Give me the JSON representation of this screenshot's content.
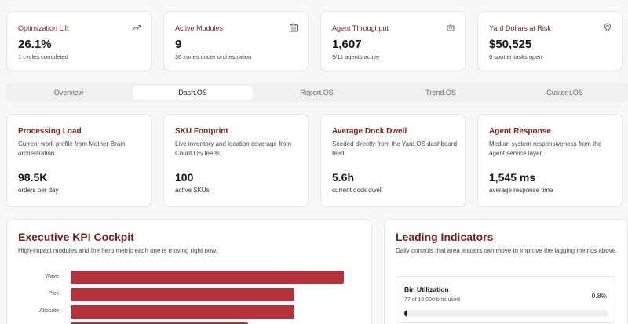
{
  "stats": [
    {
      "label": "Optimization Lift",
      "value": "26.1%",
      "sub": "1 cycles completed",
      "icon": "trend-up-icon"
    },
    {
      "label": "Active Modules",
      "value": "9",
      "sub": "36 zones under orchestration",
      "icon": "building-icon"
    },
    {
      "label": "Agent Throughput",
      "value": "1,607",
      "sub": "9/11 agents active",
      "icon": "bot-icon"
    },
    {
      "label": "Yard Dollars at Risk",
      "value": "$50,525",
      "sub": "6 spotter tasks open",
      "icon": "map-pin-icon"
    }
  ],
  "tabs": [
    "Overview",
    "Dash.OS",
    "Report.OS",
    "Trend.OS",
    "Custom.OS"
  ],
  "active_tab": "Dash.OS",
  "metrics": [
    {
      "title": "Processing Load",
      "desc": "Current work profile from Mother-Brain orchestration.",
      "value": "98.5K",
      "unit": "orders per day"
    },
    {
      "title": "SKU Footprint",
      "desc": "Live inventory and location coverage from Count.OS feeds.",
      "value": "100",
      "unit": "active SKUs"
    },
    {
      "title": "Average Dock Dwell",
      "desc": "Seeded directly from the Yard.OS dashboard feed.",
      "value": "5.6h",
      "unit": "current dock dwell"
    },
    {
      "title": "Agent Response",
      "desc": "Median system responsiveness from the agent service layer.",
      "value": "1,545 ms",
      "unit": "average response time"
    }
  ],
  "kpi_panel": {
    "title": "Executive KPI Cockpit",
    "subtitle": "High-impact modules and the hero metric each one is moving right now."
  },
  "chart_data": {
    "type": "bar",
    "orientation": "horizontal",
    "categories": [
      "Wave",
      "Pick",
      "Allocate"
    ],
    "values": [
      1.0,
      0.82,
      0.82
    ],
    "partial_next_value": 0.65,
    "color": "#b3313a"
  },
  "leading_panel": {
    "title": "Leading Indicators",
    "subtitle": "Daily controls that area leaders can move to improve the lagging metrics above.",
    "indicators": [
      {
        "name": "Bin Utilization",
        "detail": "77 of 10,000 bins used",
        "pct": "0.8%",
        "fill": 0.008
      }
    ]
  },
  "colors": {
    "accent": "#7a1e1e",
    "bar": "#b3313a",
    "background": "#f6f7f9"
  }
}
